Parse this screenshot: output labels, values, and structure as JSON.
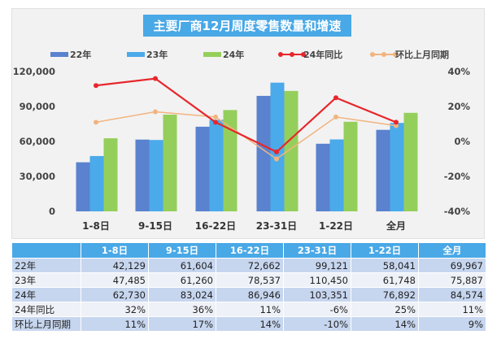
{
  "chart_data": {
    "type": "bar+line",
    "title": "主要厂商12月周度零售数量和增速",
    "categories": [
      "1-8日",
      "9-15日",
      "16-22日",
      "23-31日",
      "1-22日",
      "全月"
    ],
    "y_left": {
      "range": [
        0,
        120000
      ],
      "ticks": [
        "0",
        "30,000",
        "60,000",
        "90,000",
        "120,000"
      ]
    },
    "y_right": {
      "range": [
        -0.4,
        0.4
      ],
      "ticks": [
        "-40%",
        "-20%",
        "0%",
        "20%",
        "40%"
      ]
    },
    "legend_position": "top",
    "grid": false,
    "bar_series": [
      {
        "name": "22年",
        "color": "#5a82cf",
        "values": [
          42129,
          61604,
          72662,
          99121,
          58041,
          69967
        ]
      },
      {
        "name": "23年",
        "color": "#4baaea",
        "values": [
          47485,
          61260,
          78537,
          110450,
          61748,
          75887
        ]
      },
      {
        "name": "24年",
        "color": "#95cf5b",
        "values": [
          62730,
          83024,
          86946,
          103351,
          76892,
          84574
        ]
      }
    ],
    "line_series": [
      {
        "name": "24年同比",
        "color": "#e8262b",
        "values": [
          0.32,
          0.36,
          0.11,
          -0.06,
          0.25,
          0.11
        ]
      },
      {
        "name": "环比上月同期",
        "color": "#f2b47f",
        "values": [
          0.11,
          0.17,
          0.14,
          -0.1,
          0.14,
          0.09
        ]
      }
    ]
  },
  "table": {
    "headers": [
      "",
      "1-8日",
      "9-15日",
      "16-22日",
      "23-31日",
      "1-22日",
      "全月"
    ],
    "rows": [
      [
        "22年",
        "42,129",
        "61,604",
        "72,662",
        "99,121",
        "58,041",
        "69,967"
      ],
      [
        "23年",
        "47,485",
        "61,260",
        "78,537",
        "110,450",
        "61,748",
        "75,887"
      ],
      [
        "24年",
        "62,730",
        "83,024",
        "86,946",
        "103,351",
        "76,892",
        "84,574"
      ],
      [
        "24年同比",
        "32%",
        "36%",
        "11%",
        "-6%",
        "25%",
        "11%"
      ],
      [
        "环比上月同期",
        "11%",
        "17%",
        "14%",
        "-10%",
        "14%",
        "9%"
      ]
    ]
  }
}
